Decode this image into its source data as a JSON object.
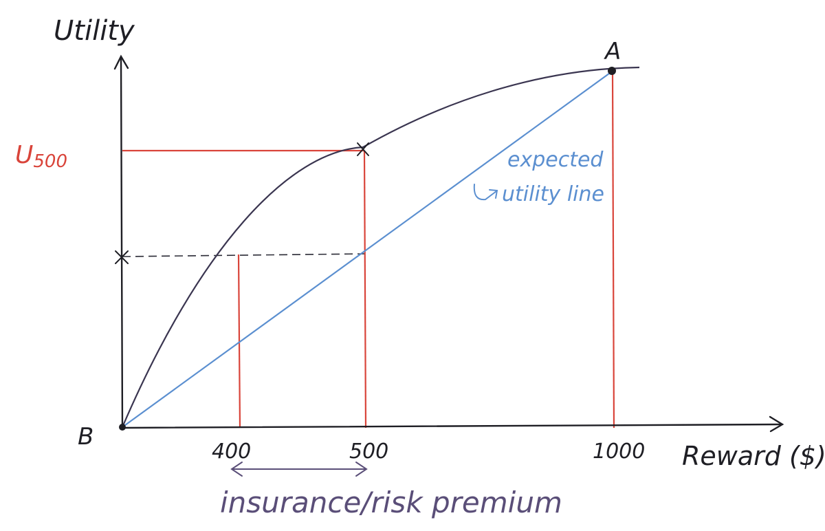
{
  "diagram": {
    "axes": {
      "y_label": "Utility",
      "x_label": "Reward ($)"
    },
    "points": {
      "origin_label": "B",
      "top_label": "A"
    },
    "ticks": {
      "x_400": "400",
      "x_500": "500",
      "x_1000": "1000"
    },
    "u500_label": "U",
    "u500_sub": "500",
    "expected_line_label_1": "expected",
    "expected_line_label_2": "utility line",
    "premium_label": "insurance/risk premium",
    "colors": {
      "ink": "#2a2a35",
      "curve": "#3a3550",
      "expected_line": "#5b8fd0",
      "guides": "#d9443a",
      "premium_arrow": "#5a4e78"
    }
  }
}
